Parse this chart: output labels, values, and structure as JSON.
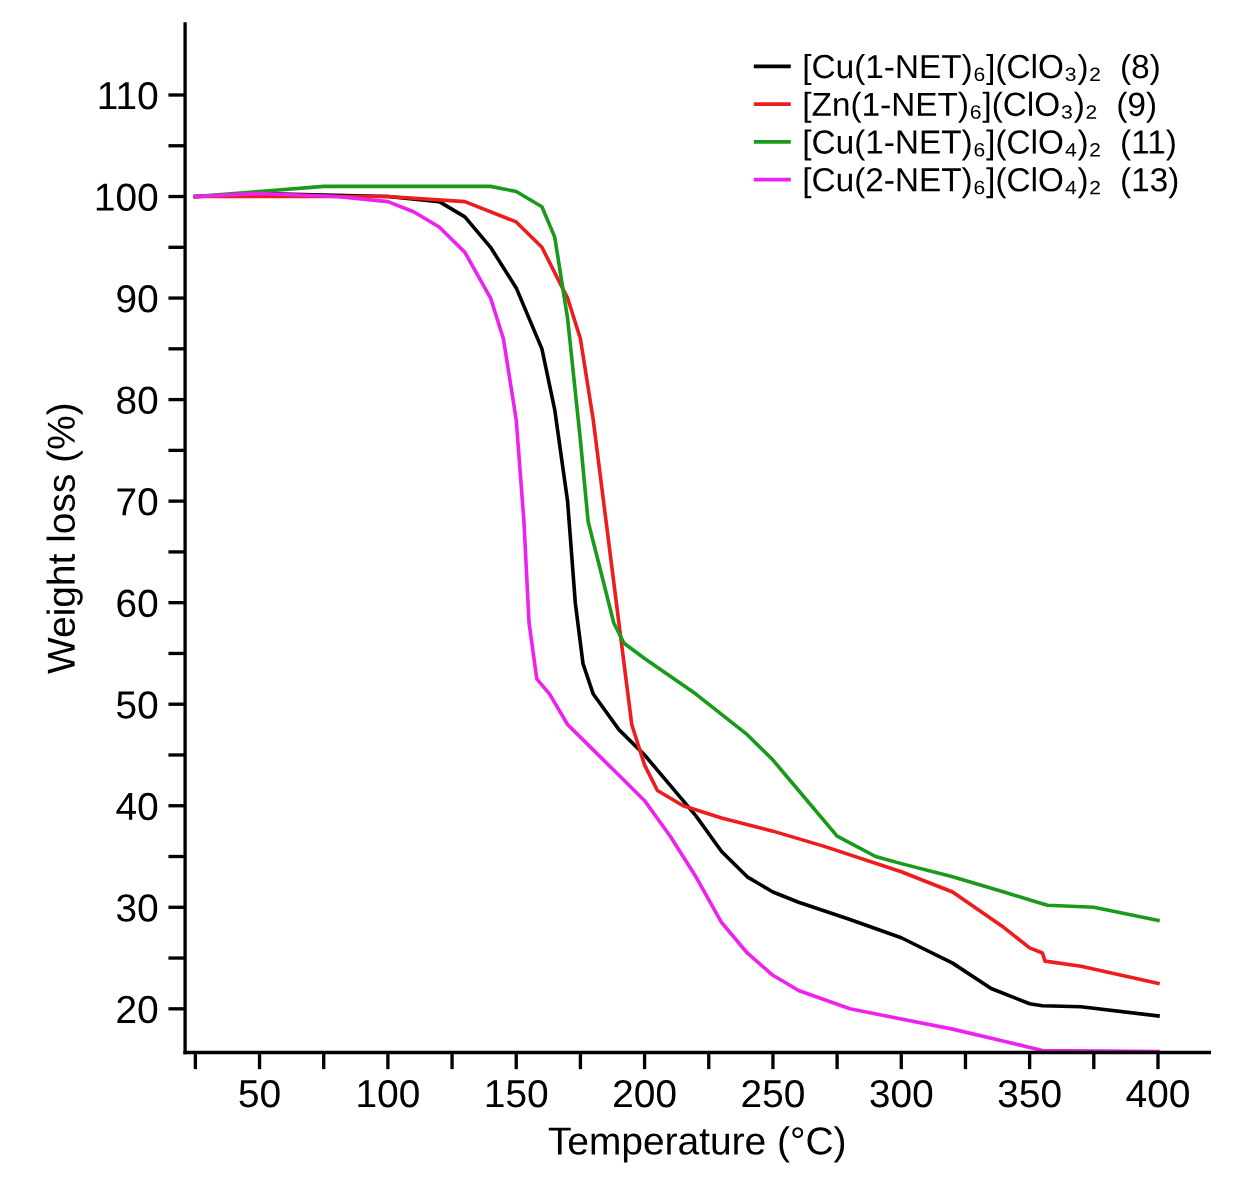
{
  "chart_data": {
    "type": "line",
    "xlabel": "Temperature (°C)",
    "ylabel": "Weight loss (%)",
    "xlim": [
      21,
      420
    ],
    "ylim": [
      15.7,
      117
    ],
    "xticks": [
      {
        "value": 25,
        "label": null
      },
      50,
      {
        "value": 75,
        "label": null
      },
      100,
      {
        "value": 125,
        "label": null
      },
      150,
      {
        "value": 175,
        "label": null
      },
      200,
      {
        "value": 225,
        "label": null
      },
      250,
      {
        "value": 275,
        "label": null
      },
      300,
      {
        "value": 325,
        "label": null
      },
      350,
      {
        "value": 375,
        "label": null
      },
      400
    ],
    "yticks": [
      20,
      {
        "value": 25,
        "label": null
      },
      30,
      {
        "value": 35,
        "label": null
      },
      40,
      {
        "value": 45,
        "label": null
      },
      50,
      {
        "value": 55,
        "label": null
      },
      60,
      {
        "value": 65,
        "label": null
      },
      70,
      {
        "value": 75,
        "label": null
      },
      80,
      {
        "value": 85,
        "label": null
      },
      90,
      {
        "value": 95,
        "label": null
      },
      100,
      {
        "value": 105,
        "label": null
      },
      110
    ],
    "legend": "top right",
    "grid": false,
    "marker": "none",
    "line_style": "solid",
    "series": [
      {
        "name": "[Cu(1-NET)₆](ClO₃)₂  (8)",
        "color": "#000000",
        "x": [
          25,
          50,
          100,
          120,
          130,
          140,
          150,
          160,
          165,
          170,
          173,
          176,
          180,
          190,
          200,
          210,
          220,
          230,
          240,
          250,
          260,
          280,
          300,
          320,
          335,
          350,
          355,
          370,
          400
        ],
        "values": [
          100,
          100.3,
          100,
          99.5,
          98,
          95,
          91,
          85,
          79,
          70,
          60,
          54,
          51,
          47.5,
          45,
          42,
          39,
          35.5,
          33,
          31.5,
          30.5,
          28.8,
          27,
          24.5,
          22,
          20.5,
          20.3,
          20.2,
          19.3
        ]
      },
      {
        "name": "[Zn(1-NET)₆](ClO₃)₂  (9)",
        "color": "#ee1c1c",
        "x": [
          25,
          100,
          130,
          150,
          160,
          170,
          175,
          180,
          185,
          190,
          195,
          200,
          205,
          215,
          230,
          250,
          270,
          300,
          320,
          340,
          350,
          355,
          356,
          370,
          400
        ],
        "values": [
          100,
          100,
          99.5,
          97.5,
          95,
          90,
          86,
          78,
          68,
          58,
          48,
          44,
          41.5,
          40,
          38.8,
          37.5,
          36,
          33.5,
          31.5,
          28,
          26,
          25.5,
          24.7,
          24.2,
          22.5
        ]
      },
      {
        "name": "[Cu(1-NET)₆](ClO₄)₂  (11)",
        "color": "#1a9a1a",
        "x": [
          25,
          50,
          75,
          100,
          140,
          150,
          160,
          165,
          170,
          175,
          178,
          182,
          188,
          192,
          200,
          220,
          240,
          250,
          260,
          275,
          290,
          300,
          320,
          340,
          353,
          357,
          375,
          400
        ],
        "values": [
          100,
          100.5,
          101,
          101,
          101,
          100.5,
          99,
          96,
          88,
          76,
          68,
          64,
          58,
          56,
          54.5,
          51,
          47,
          44.5,
          41.5,
          37,
          35,
          34.3,
          33,
          31.5,
          30.5,
          30.2,
          30,
          28.7
        ]
      },
      {
        "name": "[Cu(2-NET)₆](ClO₄)₂  (13)",
        "color": "#ee22ee",
        "x": [
          25,
          50,
          80,
          100,
          110,
          120,
          130,
          140,
          145,
          150,
          153,
          155,
          158,
          163,
          170,
          180,
          190,
          200,
          210,
          220,
          230,
          240,
          250,
          260,
          280,
          300,
          320,
          340,
          355,
          400
        ],
        "values": [
          100,
          100.3,
          100,
          99.5,
          98.5,
          97,
          94.5,
          90,
          86,
          78,
          68,
          58,
          52.5,
          51,
          48,
          45.5,
          43,
          40.5,
          37,
          33,
          28.5,
          25.5,
          23.3,
          21.8,
          20,
          19,
          18,
          16.8,
          15.9,
          15.8
        ]
      }
    ]
  }
}
